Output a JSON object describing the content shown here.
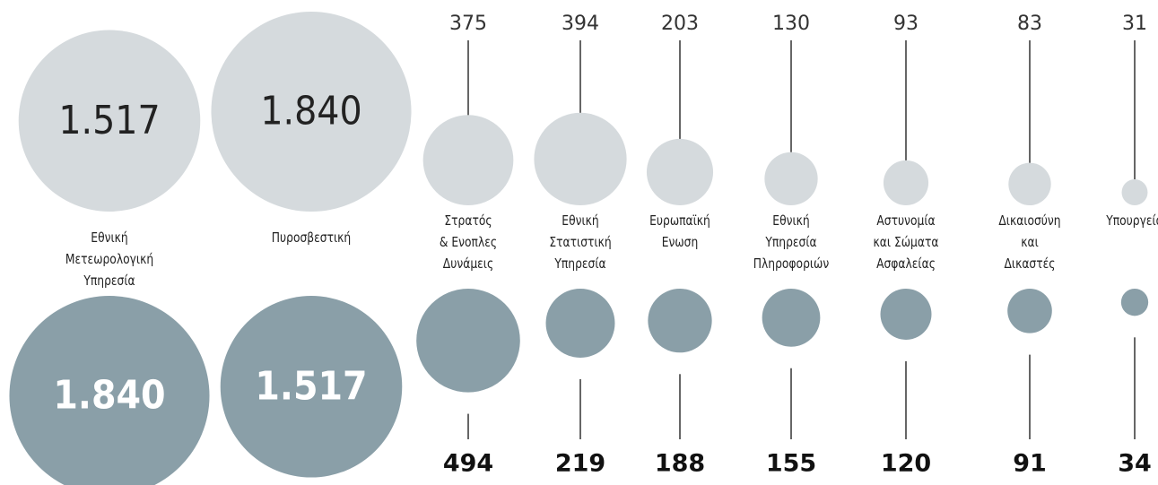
{
  "chart_data": {
    "type": "bubble",
    "categories": [
      "Εθνική Μετεωρολογική\nΥπηρεσία",
      "Πυροσβεστική",
      "Στρατός\n& Ενοπλες\nΔυνάμεις",
      "Εθνική\nΣτατιστική\nΥπηρεσία",
      "Ευρωπαϊκή\nΕνωση",
      "Εθνική\nΥπηρεσία\nΠληροφοριών",
      "Αστυνομία\nκαι Σώματα\nΑσφαλείας",
      "Δικαιοσύνη\nκαι\nΔικαστές",
      "Υπουργεία"
    ],
    "series": [
      {
        "color": "#d5dadd",
        "values": [
          1517,
          1840,
          375,
          394,
          203,
          130,
          93,
          83,
          31
        ],
        "value_labels": [
          "1.517",
          "1.840",
          "375",
          "394",
          "203",
          "130",
          "93",
          "83",
          "31"
        ]
      },
      {
        "color": "#8a9fa8",
        "values": [
          1840,
          1517,
          494,
          219,
          188,
          155,
          120,
          91,
          34
        ],
        "value_labels": [
          "1.840",
          "1.517",
          "494",
          "219",
          "188",
          "155",
          "120",
          "91",
          "34"
        ]
      }
    ]
  }
}
